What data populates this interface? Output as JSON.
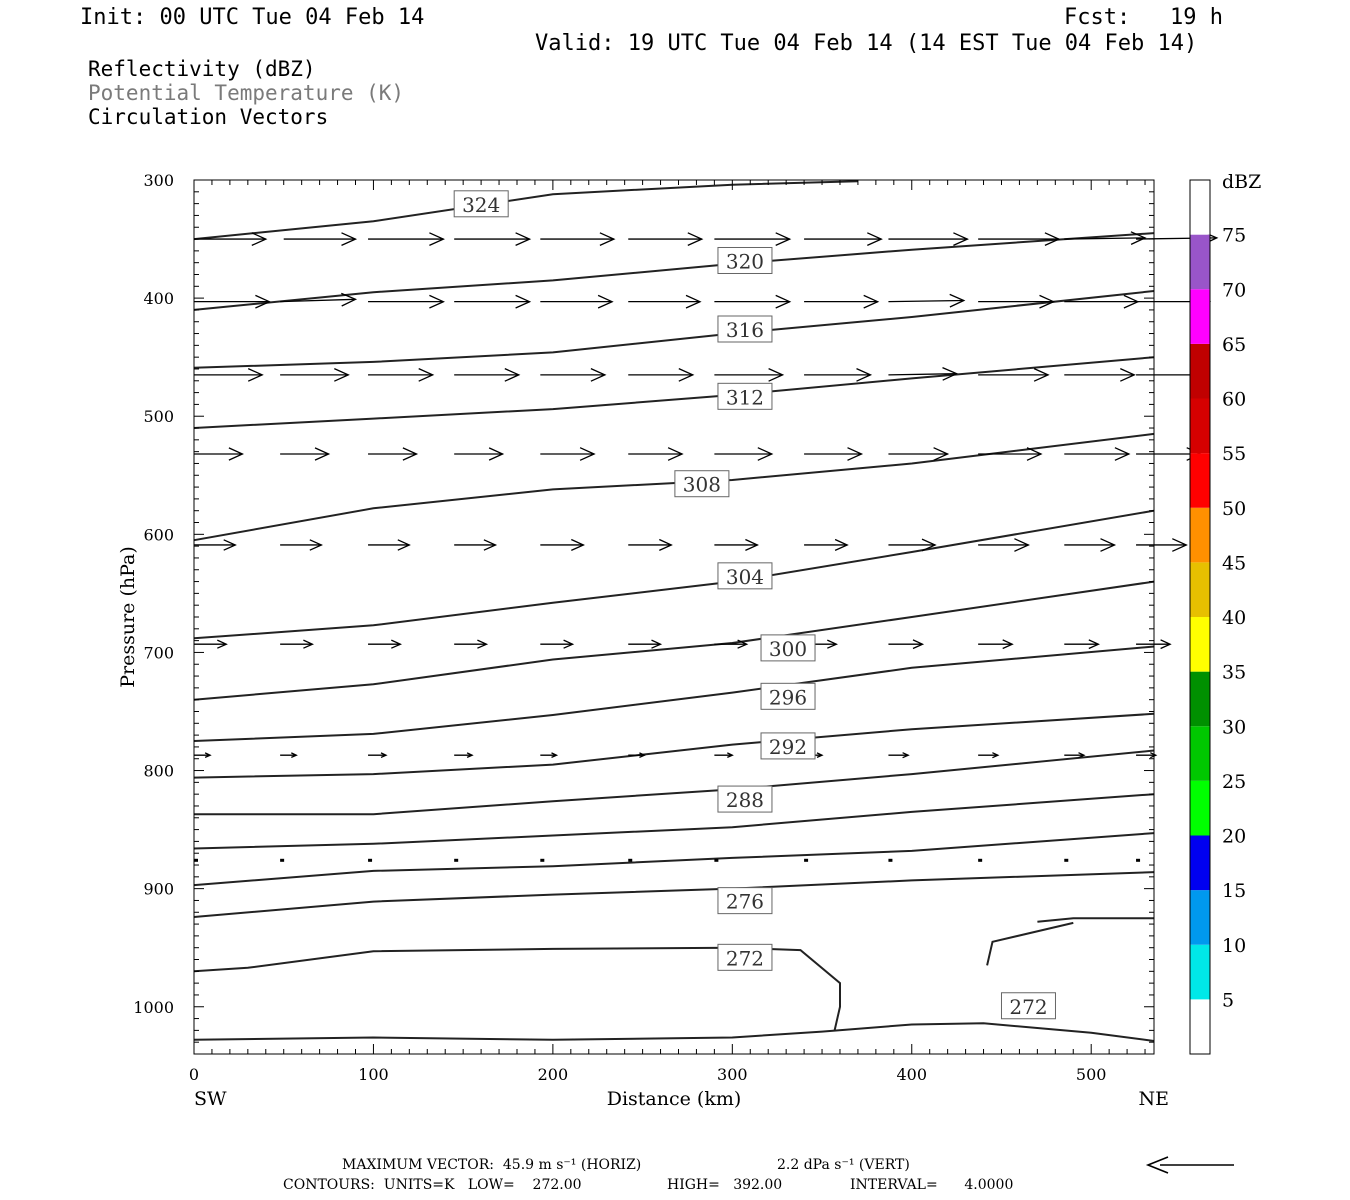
{
  "header": {
    "init": "Init: 00 UTC Tue 04 Feb 14",
    "fcst": "Fcst:   19 h",
    "valid": "Valid: 19 UTC Tue 04 Feb 14 (14 EST Tue 04 Feb 14)"
  },
  "fields": [
    {
      "label": "Reflectivity (dBZ)",
      "color": "#000000"
    },
    {
      "label": "Potential Temperature (K)",
      "color": "#7a7a7a"
    },
    {
      "label": "Circulation Vectors",
      "color": "#000000"
    }
  ],
  "chart_data": {
    "type": "line",
    "ylabel": "Pressure (hPa)",
    "xlabel": "Distance (km)",
    "xlim": [
      0,
      535
    ],
    "ylim": [
      300,
      1040
    ],
    "y_reversed": true,
    "x_ticks": [
      0,
      100,
      200,
      300,
      400,
      500
    ],
    "y_ticks": [
      300,
      400,
      500,
      600,
      700,
      800,
      900,
      1000
    ],
    "endpoint_labels": {
      "left": "SW",
      "right": "NE"
    },
    "isentropes": [
      {
        "theta": 324,
        "label": "324",
        "label_at": [
          145,
          321
        ],
        "points": [
          [
            0,
            350
          ],
          [
            100,
            335
          ],
          [
            200,
            312
          ],
          [
            300,
            304
          ],
          [
            370,
            301
          ]
        ]
      },
      {
        "theta": 320,
        "label": "320",
        "label_at": [
          292,
          369
        ],
        "points": [
          [
            0,
            410
          ],
          [
            100,
            395
          ],
          [
            200,
            385
          ],
          [
            300,
            371
          ],
          [
            400,
            359
          ],
          [
            535,
            345
          ]
        ]
      },
      {
        "theta": 316,
        "label": "316",
        "label_at": [
          292,
          427
        ],
        "points": [
          [
            0,
            459
          ],
          [
            100,
            454
          ],
          [
            200,
            446
          ],
          [
            300,
            430
          ],
          [
            400,
            416
          ],
          [
            535,
            394
          ]
        ]
      },
      {
        "theta": 312,
        "label": "312",
        "label_at": [
          292,
          484
        ],
        "points": [
          [
            0,
            510
          ],
          [
            100,
            502
          ],
          [
            200,
            494
          ],
          [
            300,
            482
          ],
          [
            400,
            468
          ],
          [
            535,
            450
          ]
        ]
      },
      {
        "theta": 308,
        "label": "308",
        "label_at": [
          268,
          558
        ],
        "points": [
          [
            0,
            605
          ],
          [
            100,
            578
          ],
          [
            200,
            562
          ],
          [
            300,
            554
          ],
          [
            400,
            540
          ],
          [
            535,
            515
          ]
        ]
      },
      {
        "theta": 304,
        "label": "304",
        "label_at": [
          292,
          636
        ],
        "points": [
          [
            0,
            688
          ],
          [
            100,
            677
          ],
          [
            200,
            658
          ],
          [
            300,
            640
          ],
          [
            400,
            615
          ],
          [
            535,
            580
          ]
        ]
      },
      {
        "theta": 300,
        "label": "300",
        "label_at": [
          316,
          697
        ],
        "points": [
          [
            0,
            740
          ],
          [
            100,
            727
          ],
          [
            200,
            706
          ],
          [
            300,
            692
          ],
          [
            400,
            670
          ],
          [
            535,
            640
          ]
        ]
      },
      {
        "theta": 296,
        "label": "296",
        "label_at": [
          316,
          738
        ],
        "points": [
          [
            0,
            775
          ],
          [
            100,
            769
          ],
          [
            200,
            753
          ],
          [
            300,
            734
          ],
          [
            400,
            713
          ],
          [
            535,
            695
          ]
        ]
      },
      {
        "theta": 292,
        "label": "292",
        "label_at": [
          316,
          780
        ],
        "points": [
          [
            0,
            806
          ],
          [
            100,
            803
          ],
          [
            200,
            795
          ],
          [
            300,
            778
          ],
          [
            400,
            765
          ],
          [
            535,
            752
          ]
        ]
      },
      {
        "theta": 288,
        "label": "288",
        "label_at": [
          292,
          825
        ],
        "points": [
          [
            0,
            837
          ],
          [
            100,
            837
          ],
          [
            200,
            826
          ],
          [
            300,
            816
          ],
          [
            400,
            803
          ],
          [
            535,
            783
          ]
        ]
      },
      {
        "theta": 284,
        "label": "",
        "label_at": null,
        "points": [
          [
            0,
            866
          ],
          [
            100,
            862
          ],
          [
            200,
            855
          ],
          [
            300,
            848
          ],
          [
            400,
            835
          ],
          [
            535,
            820
          ]
        ]
      },
      {
        "theta": 280,
        "label": "",
        "label_at": null,
        "points": [
          [
            0,
            897
          ],
          [
            100,
            885
          ],
          [
            200,
            881
          ],
          [
            300,
            874
          ],
          [
            400,
            868
          ],
          [
            535,
            853
          ]
        ]
      },
      {
        "theta": 276,
        "label": "276",
        "label_at": [
          292,
          911
        ],
        "points": [
          [
            0,
            924
          ],
          [
            100,
            911
          ],
          [
            200,
            905
          ],
          [
            300,
            900
          ],
          [
            400,
            893
          ],
          [
            535,
            886
          ]
        ]
      },
      {
        "theta": 272,
        "label": "272",
        "label_at": [
          292,
          959
        ],
        "points": [
          [
            0,
            970
          ],
          [
            30,
            967
          ],
          [
            100,
            953
          ],
          [
            200,
            951
          ],
          [
            300,
            950
          ],
          [
            338,
            952
          ],
          [
            360,
            980
          ],
          [
            360,
            1000
          ],
          [
            357,
            1020
          ]
        ]
      },
      {
        "theta": 272,
        "label": "272",
        "label_at": [
          450,
          1000
        ],
        "points": [
          [
            470,
            928
          ],
          [
            490,
            925
          ],
          [
            535,
            925
          ]
        ]
      },
      {
        "theta": 272,
        "label": "",
        "label_at": null,
        "points": [
          [
            442,
            965
          ],
          [
            445,
            945
          ],
          [
            490,
            929
          ]
        ]
      },
      {
        "theta": 268,
        "label": "",
        "label_at": null,
        "points": [
          [
            0,
            1028
          ],
          [
            100,
            1026
          ],
          [
            200,
            1028
          ],
          [
            300,
            1026
          ],
          [
            350,
            1021
          ],
          [
            400,
            1015
          ],
          [
            440,
            1014
          ],
          [
            500,
            1022
          ],
          [
            535,
            1029
          ]
        ]
      }
    ],
    "vector_rows": [
      {
        "p": 350,
        "vectors": [
          [
            0,
            350,
            40,
            0
          ],
          [
            50,
            350,
            40,
            0
          ],
          [
            97,
            350,
            42,
            0
          ],
          [
            145,
            350,
            42,
            0
          ],
          [
            193,
            350,
            41,
            0
          ],
          [
            242,
            350,
            41,
            0
          ],
          [
            290,
            350,
            42,
            0
          ],
          [
            340,
            350,
            43,
            0
          ],
          [
            387,
            350,
            44,
            0
          ],
          [
            437,
            350,
            45,
            0
          ],
          [
            485,
            350,
            45,
            -1
          ],
          [
            525,
            350,
            45,
            -1
          ]
        ]
      },
      {
        "p": 403,
        "vectors": [
          [
            0,
            403,
            42,
            0
          ],
          [
            48,
            403,
            42,
            -2
          ],
          [
            97,
            403,
            42,
            0
          ],
          [
            145,
            403,
            42,
            0
          ],
          [
            193,
            403,
            40,
            0
          ],
          [
            242,
            403,
            40,
            0
          ],
          [
            290,
            403,
            42,
            0
          ],
          [
            340,
            403,
            41,
            0
          ],
          [
            387,
            403,
            42,
            -1
          ],
          [
            437,
            403,
            42,
            0
          ],
          [
            485,
            403,
            41,
            0
          ],
          [
            525,
            403,
            41,
            0
          ]
        ]
      },
      {
        "p": 465,
        "vectors": [
          [
            0,
            465,
            38,
            0
          ],
          [
            48,
            465,
            38,
            0
          ],
          [
            97,
            465,
            36,
            0
          ],
          [
            145,
            465,
            36,
            0
          ],
          [
            193,
            465,
            36,
            0
          ],
          [
            242,
            465,
            36,
            0
          ],
          [
            290,
            465,
            38,
            0
          ],
          [
            340,
            465,
            37,
            0
          ],
          [
            387,
            465,
            38,
            -1
          ],
          [
            437,
            465,
            39,
            0
          ],
          [
            485,
            465,
            39,
            0
          ],
          [
            525,
            465,
            39,
            0
          ]
        ]
      },
      {
        "p": 532,
        "vectors": [
          [
            0,
            532,
            27,
            0
          ],
          [
            48,
            532,
            27,
            0
          ],
          [
            97,
            532,
            27,
            0
          ],
          [
            145,
            532,
            27,
            0
          ],
          [
            193,
            532,
            30,
            0
          ],
          [
            242,
            532,
            30,
            0
          ],
          [
            290,
            532,
            32,
            0
          ],
          [
            340,
            532,
            32,
            0
          ],
          [
            387,
            532,
            33,
            0
          ],
          [
            437,
            532,
            35,
            0
          ],
          [
            485,
            532,
            36,
            0
          ],
          [
            525,
            532,
            36,
            0
          ]
        ]
      },
      {
        "p": 609,
        "vectors": [
          [
            0,
            609,
            23,
            0
          ],
          [
            48,
            609,
            23,
            0
          ],
          [
            97,
            609,
            23,
            0
          ],
          [
            145,
            609,
            23,
            0
          ],
          [
            193,
            609,
            24,
            0
          ],
          [
            242,
            609,
            24,
            0
          ],
          [
            290,
            609,
            24,
            0
          ],
          [
            340,
            609,
            24,
            0
          ],
          [
            387,
            609,
            26,
            0
          ],
          [
            437,
            609,
            28,
            0
          ],
          [
            485,
            609,
            28,
            0
          ],
          [
            525,
            609,
            28,
            0
          ]
        ]
      },
      {
        "p": 693,
        "vectors": [
          [
            0,
            693,
            18,
            0
          ],
          [
            48,
            693,
            18,
            0
          ],
          [
            97,
            693,
            18,
            0
          ],
          [
            145,
            693,
            18,
            0
          ],
          [
            193,
            693,
            18,
            0
          ],
          [
            242,
            693,
            18,
            0
          ],
          [
            290,
            693,
            18,
            0
          ],
          [
            340,
            693,
            18,
            0
          ],
          [
            387,
            693,
            19,
            0
          ],
          [
            437,
            693,
            19,
            0
          ],
          [
            485,
            693,
            19,
            0
          ],
          [
            525,
            693,
            19,
            0
          ]
        ]
      },
      {
        "p": 787,
        "vectors": [
          [
            0,
            787,
            9,
            0
          ],
          [
            48,
            787,
            9,
            0
          ],
          [
            97,
            787,
            10,
            0
          ],
          [
            145,
            787,
            10,
            0
          ],
          [
            193,
            787,
            9,
            0
          ],
          [
            242,
            787,
            9,
            0
          ],
          [
            290,
            787,
            10,
            0
          ],
          [
            340,
            787,
            10,
            0
          ],
          [
            387,
            787,
            11,
            0
          ],
          [
            437,
            787,
            11,
            0
          ],
          [
            485,
            787,
            11,
            0
          ],
          [
            525,
            787,
            11,
            0
          ]
        ]
      },
      {
        "p": 876,
        "vectors": [
          [
            0,
            876,
            1,
            0
          ],
          [
            48,
            876,
            1,
            0
          ],
          [
            97,
            876,
            1,
            0
          ],
          [
            145,
            876,
            1,
            0
          ],
          [
            193,
            876,
            1,
            0
          ],
          [
            242,
            876,
            1,
            0
          ],
          [
            290,
            876,
            1,
            0
          ],
          [
            340,
            876,
            1,
            0
          ],
          [
            387,
            876,
            1,
            0
          ],
          [
            437,
            876,
            1,
            0
          ],
          [
            485,
            876,
            1,
            0
          ],
          [
            525,
            876,
            1,
            0
          ]
        ]
      }
    ],
    "color_scale": {
      "title": "dBZ",
      "labels": [
        "5",
        "10",
        "15",
        "20",
        "25",
        "30",
        "35",
        "40",
        "45",
        "50",
        "55",
        "60",
        "65",
        "70",
        "75"
      ],
      "colors": [
        "#ffffff",
        "#00e8e8",
        "#0099ee",
        "#0000f0",
        "#00ff00",
        "#00c800",
        "#009000",
        "#ffff00",
        "#e7c000",
        "#ff9000",
        "#ff0000",
        "#d60000",
        "#c00000",
        "#ff00ff",
        "#9955c9",
        "#ffffff"
      ]
    }
  },
  "footer": {
    "line1_a": "MAXIMUM VECTOR:  45.9 m s⁻¹ (HORIZ)",
    "line1_b": "2.2 dPa s⁻¹ (VERT)",
    "line2_a": "CONTOURS:  UNITS=K   LOW=    272.00",
    "line2_b": "HIGH=   392.00",
    "line2_c": "INTERVAL=      4.0000"
  }
}
